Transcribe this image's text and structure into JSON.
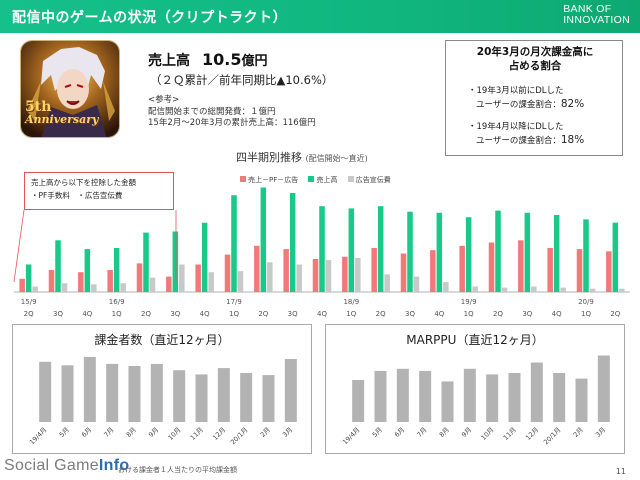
{
  "header": {
    "title": "配信中のゲームの状況（クリプトラクト）",
    "brand_line1": "BANK OF",
    "brand_line2": "INNOVATION"
  },
  "app_icon": {
    "badge_num": "5th",
    "badge_text": "Anniversary"
  },
  "sales": {
    "label": "売上高",
    "value": "10.5",
    "unit": "億円",
    "sub": "（２Ｑ累計／前年同期比▲10.6%）",
    "ref_title": "<参考>",
    "ref_line1": "配信開始までの総開発費：１億円",
    "ref_line2": "15年2月〜20年3月の累計売上高：116億円"
  },
  "ratio_box": {
    "title_line1": "20年3月の月次課金高に",
    "title_line2": "占める割合",
    "item1_line1": "・19年3月以前にDLした",
    "item1_line2": "ユーザーの課金割合：",
    "item1_value": "82%",
    "item2_line1": "・19年4月以降にDLした",
    "item2_line2": "ユーザーの課金割合：",
    "item2_value": "18%"
  },
  "callout": {
    "line1": "売上高から以下を控除した金額",
    "line2": "・PF手数料　・広告宣伝費"
  },
  "colors": {
    "red": "#f07a7a",
    "green": "#19c98a",
    "gray": "#c8c8c8",
    "brand": "#12b880"
  },
  "chart_data": [
    {
      "type": "bar",
      "title": "四半期別推移",
      "subtitle": "(配信開始〜直近)",
      "categories": [
        "15/9 2Q",
        "3Q",
        "4Q",
        "16/9 1Q",
        "2Q",
        "3Q",
        "4Q",
        "17/9 1Q",
        "2Q",
        "3Q",
        "4Q",
        "18/9 1Q",
        "2Q",
        "3Q",
        "4Q",
        "19/9 1Q",
        "2Q",
        "3Q",
        "4Q",
        "20/9 1Q",
        "2Q"
      ],
      "year_labels": [
        "15/9",
        "16/9",
        "17/9",
        "18/9",
        "19/9",
        "20/9"
      ],
      "quarter_labels": [
        "2Q",
        "3Q",
        "4Q",
        "1Q",
        "2Q",
        "3Q",
        "4Q",
        "1Q",
        "2Q",
        "3Q",
        "4Q",
        "1Q",
        "2Q",
        "3Q",
        "4Q",
        "1Q",
        "2Q",
        "3Q",
        "4Q",
        "1Q",
        "2Q"
      ],
      "series": [
        {
          "name": "売上－PF－広告",
          "color": "#f07a7a",
          "values": [
            12,
            20,
            18,
            20,
            26,
            14,
            25,
            34,
            42,
            39,
            30,
            32,
            40,
            35,
            38,
            42,
            45,
            47,
            40,
            39,
            37
          ]
        },
        {
          "name": "売上高",
          "color": "#19c98a",
          "values": [
            25,
            47,
            39,
            40,
            54,
            55,
            63,
            88,
            95,
            90,
            78,
            76,
            78,
            73,
            72,
            68,
            74,
            72,
            70,
            66,
            63
          ]
        },
        {
          "name": "広告宣伝費",
          "color": "#c8c8c8",
          "values": [
            5,
            8,
            7,
            8,
            13,
            25,
            18,
            19,
            27,
            25,
            29,
            31,
            16,
            14,
            9,
            5,
            4,
            5,
            4,
            3,
            3
          ]
        }
      ]
    },
    {
      "type": "bar",
      "title": "課金者数（直近12ヶ月）",
      "categories": [
        "19/4月",
        "5月",
        "6月",
        "7月",
        "8月",
        "9月",
        "10月",
        "11月",
        "12月",
        "20/1月",
        "2月",
        "3月"
      ],
      "values": [
        86,
        81,
        93,
        83,
        80,
        83,
        74,
        68,
        77,
        70,
        67,
        90
      ],
      "ylim": [
        0,
        100
      ]
    },
    {
      "type": "bar",
      "title": "MARPPU（直近12ヶ月）",
      "categories": [
        "19/4月",
        "5月",
        "6月",
        "7月",
        "8月",
        "9月",
        "10月",
        "11月",
        "12月",
        "20/1月",
        "2月",
        "3月"
      ],
      "values": [
        60,
        73,
        76,
        73,
        58,
        76,
        68,
        70,
        85,
        70,
        62,
        95
      ],
      "ylim": [
        0,
        100
      ]
    }
  ],
  "footer": {
    "text": "おける課金者１人当たりの平均課金額",
    "watermark_pre": "Social Game",
    "watermark_post": "Info",
    "page": "11"
  }
}
